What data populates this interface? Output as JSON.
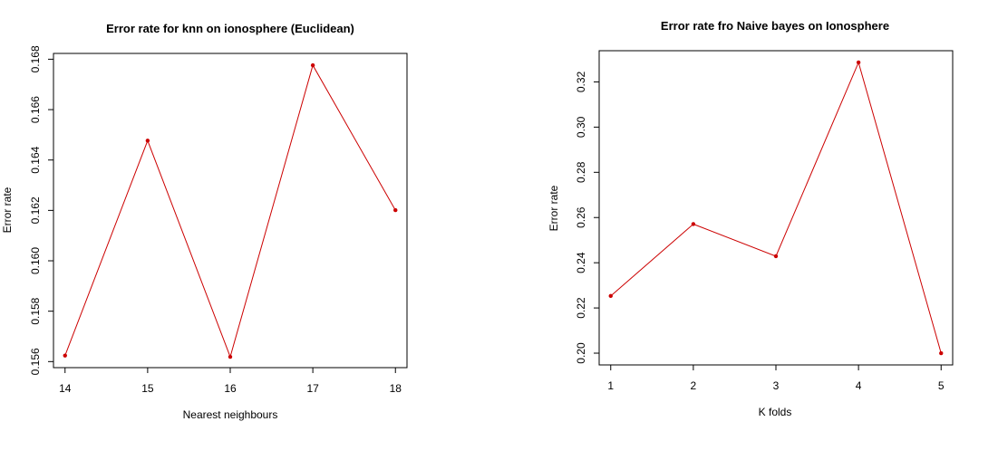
{
  "colors": {
    "series": "#cc0000",
    "axis": "#000000"
  },
  "chart_data": [
    {
      "type": "line",
      "title": "Error rate for knn on ionosphere (Euclidean)",
      "xlabel": "Nearest neighbours",
      "ylabel": "Error rate",
      "x": [
        14,
        15,
        16,
        17,
        18
      ],
      "y": [
        0.15624,
        0.16477,
        0.15619,
        0.16776,
        0.16201
      ],
      "xticks": [
        "14",
        "15",
        "16",
        "17",
        "18"
      ],
      "yticks": [
        "0.156",
        "0.158",
        "0.160",
        "0.162",
        "0.164",
        "0.166",
        "0.168"
      ],
      "xlim": [
        13.86,
        18.14
      ],
      "ylim": [
        0.15576,
        0.16823
      ],
      "grid": false
    },
    {
      "type": "line",
      "title": "Error rate fro Naive bayes on Ionosphere",
      "xlabel": "K folds",
      "ylabel": "Error rate",
      "x": [
        1,
        2,
        3,
        4,
        5
      ],
      "y": [
        0.2253,
        0.2571,
        0.2429,
        0.3286,
        0.2
      ],
      "xticks": [
        "1",
        "2",
        "3",
        "4",
        "5"
      ],
      "yticks": [
        "0.20",
        "0.22",
        "0.24",
        "0.26",
        "0.28",
        "0.30",
        "0.32"
      ],
      "xlim": [
        0.86,
        5.14
      ],
      "ylim": [
        0.1948,
        0.3338
      ],
      "grid": false
    }
  ]
}
